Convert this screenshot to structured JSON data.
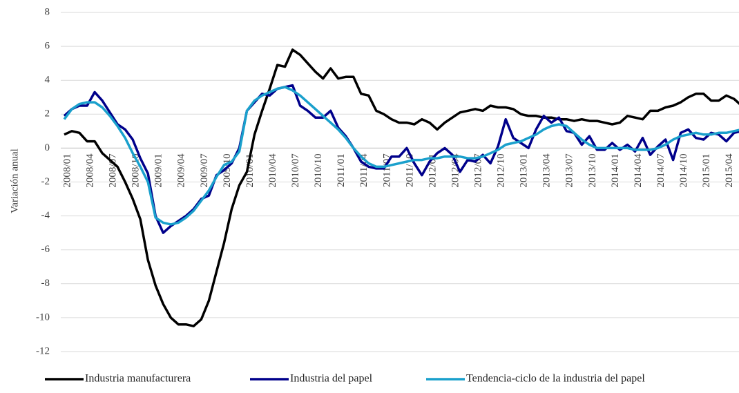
{
  "chart_data": {
    "type": "line",
    "y_label": "Variación anual",
    "categories": [
      "2008/01",
      null,
      null,
      "2008/04",
      null,
      null,
      "2008/07",
      null,
      null,
      "2008/10",
      null,
      null,
      "2009/01",
      null,
      null,
      "2009/04",
      null,
      null,
      "2009/07",
      null,
      null,
      "2009/10",
      null,
      null,
      "2010/01",
      null,
      null,
      "2010/04",
      null,
      null,
      "2010/07",
      null,
      null,
      "2010/10",
      null,
      null,
      "2011/01",
      null,
      null,
      "2011/04",
      null,
      null,
      "2011/07",
      null,
      null,
      "2011/10",
      null,
      null,
      "2012/01",
      null,
      null,
      "2012/04",
      null,
      null,
      "2012/07",
      null,
      null,
      "2012/10",
      null,
      null,
      "2013/01",
      null,
      null,
      "2013/04",
      null,
      null,
      "2013/07",
      null,
      null,
      "2013/10",
      null,
      null,
      "2014/01",
      null,
      null,
      "2014/04",
      null,
      null,
      "2014/07",
      null,
      null,
      "2014/10",
      null,
      null,
      "2015/01",
      null,
      null,
      "2015/04",
      null,
      null
    ],
    "series": [
      {
        "name": "Industria manufacturera",
        "color": "#000000",
        "values": [
          0.8,
          1.0,
          0.9,
          0.4,
          0.4,
          -0.3,
          -0.7,
          -1.1,
          -2.0,
          -3.0,
          -4.2,
          -6.6,
          -8.1,
          -9.2,
          -10.0,
          -10.4,
          -10.4,
          -10.5,
          -10.1,
          -9.0,
          -7.3,
          -5.6,
          -3.6,
          -2.2,
          -1.4,
          0.8,
          2.2,
          3.5,
          4.9,
          4.8,
          5.8,
          5.5,
          5.0,
          4.5,
          4.1,
          4.7,
          4.1,
          4.2,
          4.2,
          3.2,
          3.1,
          2.2,
          2.0,
          1.7,
          1.5,
          1.5,
          1.4,
          1.7,
          1.5,
          1.1,
          1.5,
          1.8,
          2.1,
          2.2,
          2.3,
          2.2,
          2.5,
          2.4,
          2.4,
          2.3,
          2.0,
          1.9,
          1.9,
          1.8,
          1.8,
          1.7,
          1.7,
          1.6,
          1.7,
          1.6,
          1.6,
          1.5,
          1.4,
          1.5,
          1.9,
          1.8,
          1.7,
          2.2,
          2.2,
          2.4,
          2.5,
          2.7,
          3.0,
          3.2,
          3.2,
          2.8,
          2.8,
          3.1,
          2.9,
          2.5
        ]
      },
      {
        "name": "Industria del papel",
        "color": "#00008b",
        "values": [
          1.9,
          2.3,
          2.5,
          2.5,
          3.3,
          2.8,
          2.1,
          1.4,
          1.1,
          0.5,
          -0.6,
          -1.5,
          -4.0,
          -5.0,
          -4.6,
          -4.3,
          -4.0,
          -3.6,
          -3.0,
          -2.8,
          -1.6,
          -1.3,
          -0.9,
          0.0,
          2.2,
          2.7,
          3.2,
          3.1,
          3.5,
          3.6,
          3.7,
          2.5,
          2.2,
          1.8,
          1.8,
          2.2,
          1.2,
          0.7,
          0.0,
          -0.8,
          -1.1,
          -1.2,
          -1.2,
          -0.5,
          -0.5,
          0.0,
          -0.9,
          -1.6,
          -0.8,
          -0.3,
          0.0,
          -0.4,
          -1.4,
          -0.7,
          -0.8,
          -0.4,
          -0.9,
          0.1,
          1.7,
          0.6,
          0.3,
          0.0,
          1.1,
          1.9,
          1.5,
          1.8,
          1.0,
          0.9,
          0.2,
          0.7,
          -0.1,
          -0.1,
          0.3,
          -0.1,
          0.2,
          -0.2,
          0.6,
          -0.4,
          0.1,
          0.5,
          -0.7,
          0.9,
          1.1,
          0.6,
          0.5,
          0.9,
          0.8,
          0.4,
          0.9,
          1.0
        ]
      },
      {
        "name": "Tendencia-ciclo de la industria del papel",
        "color": "#1aa0cc",
        "values": [
          1.7,
          2.3,
          2.6,
          2.7,
          2.7,
          2.4,
          1.9,
          1.3,
          0.6,
          -0.3,
          -1.1,
          -2.0,
          -4.1,
          -4.4,
          -4.5,
          -4.4,
          -4.1,
          -3.7,
          -3.1,
          -2.5,
          -1.7,
          -1.0,
          -0.8,
          -0.2,
          2.2,
          2.8,
          3.1,
          3.3,
          3.5,
          3.6,
          3.4,
          3.1,
          2.7,
          2.3,
          1.9,
          1.5,
          1.1,
          0.6,
          0.0,
          -0.5,
          -0.9,
          -1.1,
          -1.1,
          -1.0,
          -0.9,
          -0.8,
          -0.7,
          -0.7,
          -0.6,
          -0.6,
          -0.5,
          -0.5,
          -0.5,
          -0.6,
          -0.6,
          -0.5,
          -0.3,
          -0.1,
          0.2,
          0.3,
          0.4,
          0.6,
          0.8,
          1.1,
          1.3,
          1.4,
          1.3,
          0.9,
          0.5,
          0.2,
          0.0,
          0.0,
          0.0,
          0.0,
          0.0,
          -0.1,
          -0.1,
          -0.1,
          0.0,
          0.2,
          0.5,
          0.7,
          0.8,
          0.9,
          0.8,
          0.8,
          0.9,
          0.9,
          1.0,
          1.1
        ]
      }
    ],
    "ylim": [
      -12,
      8
    ],
    "yticks": [
      -12,
      -10,
      -8,
      -6,
      -4,
      -2,
      0,
      2,
      4,
      6,
      8
    ],
    "grid": true,
    "legend": "bottom"
  }
}
